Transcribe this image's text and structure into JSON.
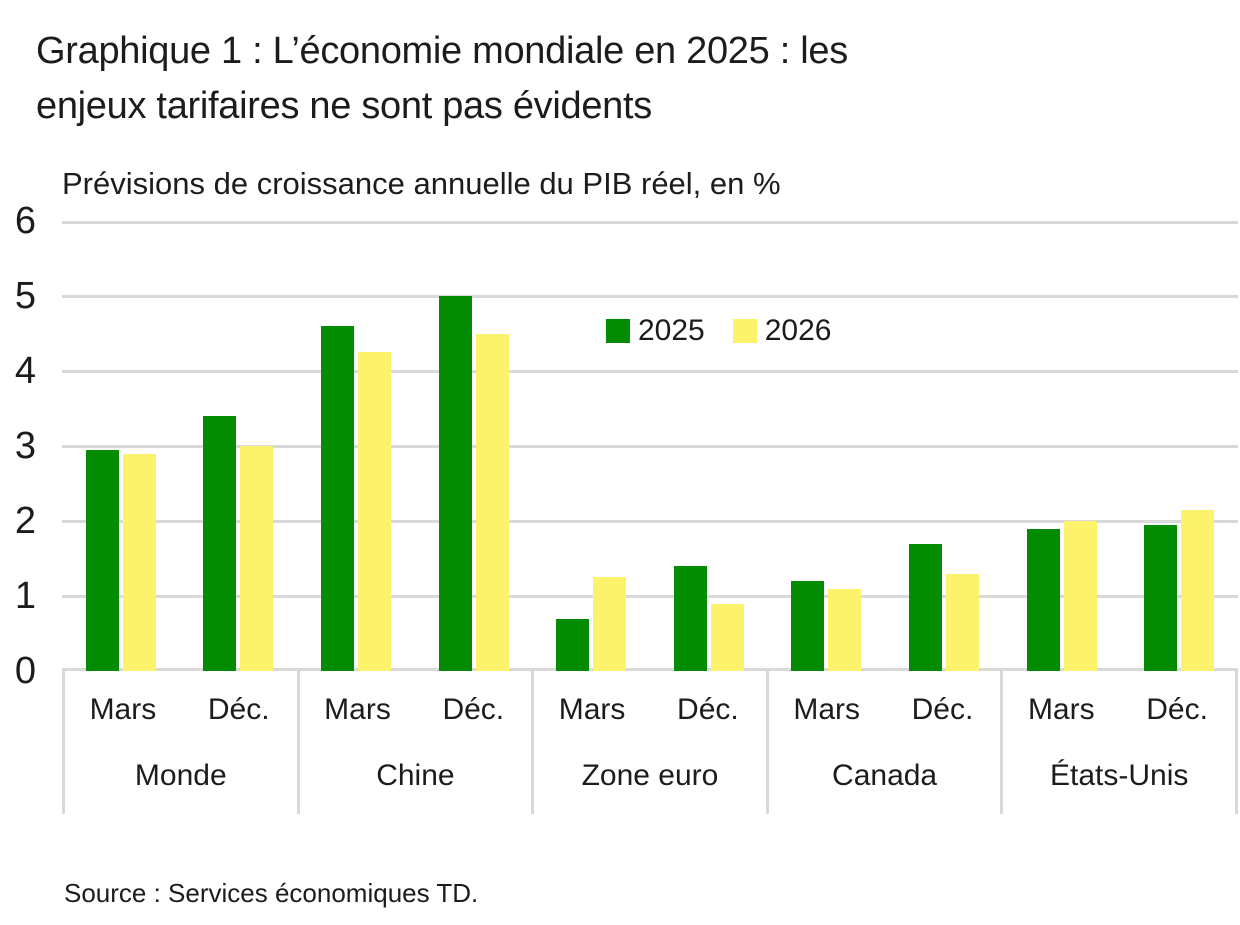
{
  "page": {
    "source": "Source : Services économiques TD."
  },
  "colors": {
    "series_2025": "#048B04",
    "series_2026": "#FCF26C",
    "gridline": "#D9D9D9",
    "text": "#1C1C1C"
  },
  "chart_data": {
    "type": "bar",
    "title": "Graphique 1 : L’économie mondiale en 2025 : les enjeux tarifaires ne sont pas évidents",
    "title_lines": [
      "Graphique 1 : L’économie mondiale en 2025 : les",
      "enjeux tarifaires ne sont pas évidents"
    ],
    "subtitle": "Prévisions de croissance annuelle du PIB réel, en %",
    "xlabel": "",
    "ylabel": "",
    "ylim": [
      0,
      6
    ],
    "yticks": [
      0,
      1,
      2,
      3,
      4,
      5,
      6
    ],
    "grid": true,
    "legend_position": "inside-top-center",
    "series": [
      {
        "name": "2025",
        "color": "#048B04"
      },
      {
        "name": "2026",
        "color": "#FCF26C"
      }
    ],
    "groups": [
      {
        "label": "Monde",
        "bars": [
          {
            "period": "Mars",
            "values": [
              2.95,
              2.9
            ]
          },
          {
            "period": "Déc.",
            "values": [
              3.4,
              3.0
            ]
          }
        ]
      },
      {
        "label": "Chine",
        "bars": [
          {
            "period": "Mars",
            "values": [
              4.6,
              4.25
            ]
          },
          {
            "period": "Déc.",
            "values": [
              5.0,
              4.5
            ]
          }
        ]
      },
      {
        "label": "Zone euro",
        "bars": [
          {
            "period": "Mars",
            "values": [
              0.7,
              1.25
            ]
          },
          {
            "period": "Déc.",
            "values": [
              1.4,
              0.9
            ]
          }
        ]
      },
      {
        "label": "Canada",
        "bars": [
          {
            "period": "Mars",
            "values": [
              1.2,
              1.1
            ]
          },
          {
            "period": "Déc.",
            "values": [
              1.7,
              1.3
            ]
          }
        ]
      },
      {
        "label": "États-Unis",
        "bars": [
          {
            "period": "Mars",
            "values": [
              1.9,
              2.0
            ]
          },
          {
            "period": "Déc.",
            "values": [
              1.95,
              2.15
            ]
          }
        ]
      }
    ]
  }
}
